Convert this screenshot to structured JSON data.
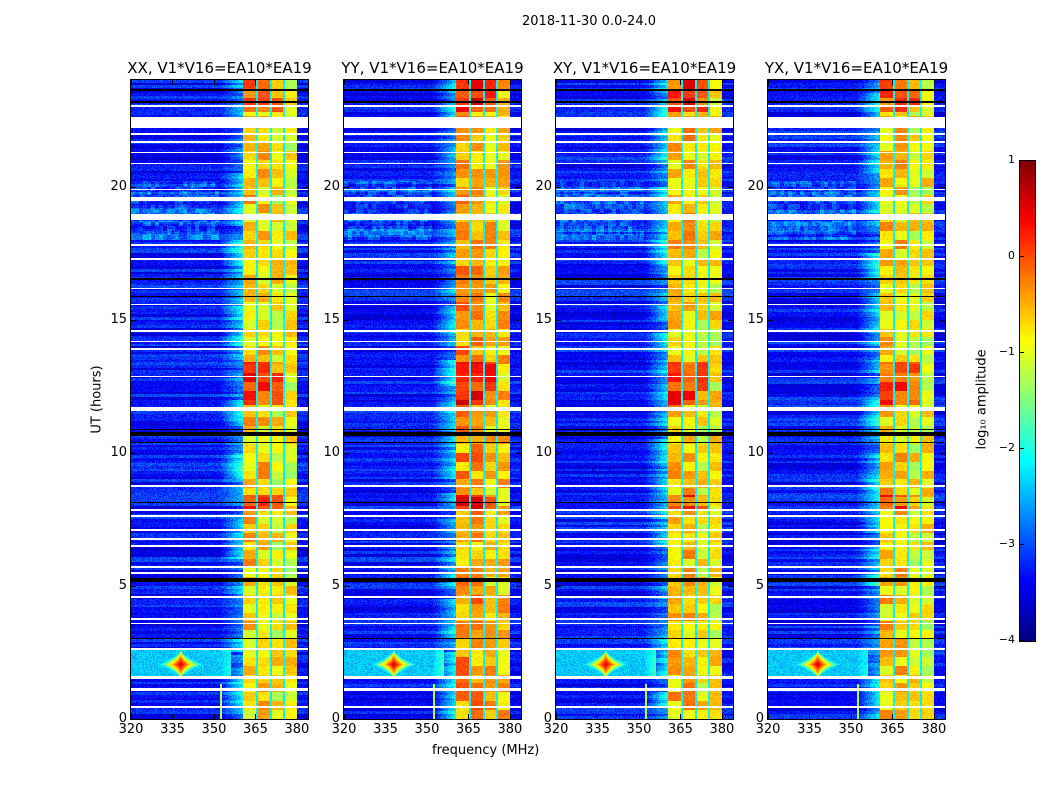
{
  "figure": {
    "suptitle": "2018-11-30 0.0-24.0",
    "xlabel": "frequency (MHz)",
    "ylabel": "UT (hours)"
  },
  "colorbar": {
    "label": "log₁₀ amplitude",
    "ticks": [
      1,
      0,
      -1,
      -2,
      -3,
      -4
    ],
    "tick_labels": [
      "1",
      "0",
      "−1",
      "−2",
      "−3",
      "−4"
    ],
    "range": [
      -4,
      1
    ],
    "colormap": "jet"
  },
  "chart_data": [
    {
      "type": "heatmap",
      "title": "XX, V1*V16=EA10*EA19",
      "xlim": [
        320,
        384
      ],
      "ylim": [
        0,
        24
      ],
      "xticks": [
        320,
        335,
        350,
        365,
        380
      ],
      "xtick_labels": [
        "320",
        "335",
        "350",
        "365",
        "380"
      ],
      "yticks": [
        0,
        5,
        10,
        15,
        20
      ],
      "ytick_labels": [
        "0",
        "5",
        "10",
        "15",
        "20"
      ],
      "clim": [
        -4,
        1
      ],
      "offset": 0.0
    },
    {
      "type": "heatmap",
      "title": "YY, V1*V16=EA10*EA19",
      "xlim": [
        320,
        384
      ],
      "ylim": [
        0,
        24
      ],
      "xticks": [
        320,
        335,
        350,
        365,
        380
      ],
      "xtick_labels": [
        "320",
        "335",
        "350",
        "365",
        "380"
      ],
      "yticks": [
        0,
        5,
        10,
        15,
        20
      ],
      "ytick_labels": [
        "0",
        "5",
        "10",
        "15",
        "20"
      ],
      "clim": [
        -4,
        1
      ],
      "offset": 0.25
    },
    {
      "type": "heatmap",
      "title": "XY, V1*V16=EA10*EA19",
      "xlim": [
        320,
        384
      ],
      "ylim": [
        0,
        24
      ],
      "xticks": [
        320,
        335,
        350,
        365,
        380
      ],
      "xtick_labels": [
        "320",
        "335",
        "350",
        "365",
        "380"
      ],
      "yticks": [
        0,
        5,
        10,
        15,
        20
      ],
      "ytick_labels": [
        "0",
        "5",
        "10",
        "15",
        "20"
      ],
      "clim": [
        -4,
        1
      ],
      "offset": 0.05
    },
    {
      "type": "heatmap",
      "title": "YX, V1*V16=EA10*EA19",
      "xlim": [
        320,
        384
      ],
      "ylim": [
        0,
        24
      ],
      "xticks": [
        320,
        335,
        350,
        365,
        380
      ],
      "xtick_labels": [
        "320",
        "335",
        "350",
        "365",
        "380"
      ],
      "yticks": [
        0,
        5,
        10,
        15,
        20
      ],
      "ytick_labels": [
        "0",
        "5",
        "10",
        "15",
        "20"
      ],
      "clim": [
        -4,
        1
      ],
      "offset": 0.0
    }
  ],
  "features": {
    "background_log_amp": -3.3,
    "rfi_blocks_mhz": [
      [
        360.4,
        365.1
      ],
      [
        365.8,
        370.2
      ],
      [
        370.9,
        374.9
      ],
      [
        375.6,
        380.0
      ]
    ],
    "rfi_level_log_amp": -0.7,
    "hot_periods_hours": [
      [
        11.8,
        13.4
      ],
      [
        22.8,
        24.0
      ],
      [
        7.9,
        8.4
      ]
    ],
    "flagged_hours": [
      [
        0.4,
        0.5
      ],
      [
        1.05,
        1.15
      ],
      [
        1.5,
        1.6
      ],
      [
        2.6,
        2.68
      ],
      [
        3.55,
        3.62
      ],
      [
        3.72,
        3.8
      ],
      [
        4.55,
        4.62
      ],
      [
        5.45,
        5.52
      ],
      [
        5.68,
        5.75
      ],
      [
        6.45,
        6.52
      ],
      [
        6.72,
        6.8
      ],
      [
        7.05,
        7.12
      ],
      [
        7.58,
        7.65
      ],
      [
        7.82,
        7.9
      ],
      [
        8.7,
        8.8
      ],
      [
        11.55,
        11.7
      ],
      [
        12.85,
        12.9
      ],
      [
        13.85,
        13.95
      ],
      [
        14.15,
        14.2
      ],
      [
        14.55,
        14.62
      ],
      [
        15.55,
        15.6
      ],
      [
        16.15,
        16.2
      ],
      [
        17.25,
        17.3
      ],
      [
        17.75,
        17.85
      ],
      [
        18.75,
        18.95
      ],
      [
        19.45,
        19.6
      ],
      [
        19.85,
        19.9
      ],
      [
        20.85,
        20.9
      ],
      [
        21.25,
        21.3
      ],
      [
        21.65,
        21.72
      ],
      [
        21.95,
        22.0
      ],
      [
        22.2,
        22.6
      ],
      [
        23.0,
        23.05
      ]
    ],
    "dark_hours": [
      [
        5.15,
        5.28
      ],
      [
        10.35,
        10.42
      ],
      [
        10.62,
        10.78
      ],
      [
        10.85,
        10.9
      ],
      [
        16.5,
        16.56
      ],
      [
        23.15,
        23.22
      ],
      [
        23.6,
        23.65
      ],
      [
        3.0,
        3.05
      ],
      [
        8.1,
        8.15
      ],
      [
        15.85,
        15.9
      ]
    ],
    "bright_spike": {
      "freq_mhz": 338,
      "time_hours": 2.05
    }
  }
}
